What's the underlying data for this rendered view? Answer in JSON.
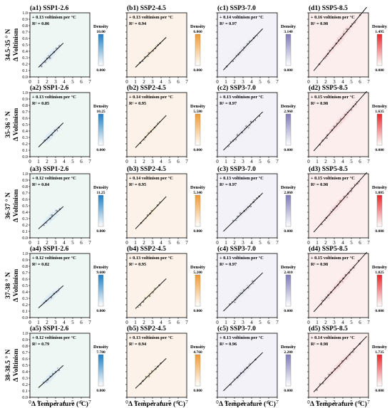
{
  "figure": {
    "xlabel": "Δ Temperature (°C)",
    "ylabel": "Δ Voltinism",
    "x_ticks": [
      "0",
      "1",
      "2",
      "3",
      "4",
      "5",
      "6",
      "7"
    ],
    "y_ticks": [
      "0.0",
      "0.1",
      "0.2",
      "0.3",
      "0.4",
      "0.5",
      "0.6",
      "0.7",
      "0.8",
      "0.9",
      "1.0"
    ],
    "density_label": "Density",
    "density_min": "0.000",
    "row_labels": [
      "34.5-35 ° N",
      "35-36 ° N",
      "36-37 ° N",
      "37-38 ° N",
      "38-38.5 ° N"
    ],
    "scenarios": [
      {
        "name": "SSP1-2.6",
        "bg": "#eef7f3",
        "cmap": "#1f7fc4"
      },
      {
        "name": "SSP2-4.5",
        "bg": "#fdf2e9",
        "cmap": "#f29a2e"
      },
      {
        "name": "SSP3-7.0",
        "bg": "#f3f2f9",
        "cmap": "#7f7cba"
      },
      {
        "name": "SSP5-8.5",
        "bg": "#fdeeee",
        "cmap": "#e8262a"
      }
    ]
  },
  "chart_data": [
    {
      "type": "scatter",
      "panel": "(a1) SSP1-2.6",
      "slope_text": "+ 0.13 voltinism per °C",
      "r2_text": "R² = 0.86",
      "density_max": "10.00",
      "xlim": [
        0,
        7
      ],
      "ylim": [
        0,
        1.0
      ],
      "x_range": [
        1.2,
        3.6
      ],
      "slope": 0.13,
      "intercept": 0.02
    },
    {
      "type": "scatter",
      "panel": "(b1) SSP2-4.5",
      "slope_text": "+ 0.13 voltinism per °C",
      "r2_text": "R² = 0.94",
      "density_max": "6.060",
      "xlim": [
        0,
        7
      ],
      "ylim": [
        0,
        1.0
      ],
      "x_range": [
        1.2,
        4.3
      ],
      "slope": 0.13,
      "intercept": 0.02
    },
    {
      "type": "scatter",
      "panel": "(c1) SSP3-7.0",
      "slope_text": "+ 0.14 voltinism per °C",
      "r2_text": "R² = 0.97",
      "density_max": "3.140",
      "xlim": [
        0,
        7
      ],
      "ylim": [
        0,
        1.0
      ],
      "x_range": [
        0.9,
        5.0
      ],
      "slope": 0.14,
      "intercept": 0.01
    },
    {
      "type": "scatter",
      "panel": "(d1) SSP5-8.5",
      "slope_text": "+ 0.16 voltinism per °C",
      "r2_text": "R² = 0.98",
      "density_max": "1.495",
      "xlim": [
        0,
        7
      ],
      "ylim": [
        0,
        1.0
      ],
      "x_range": [
        0.8,
        6.5
      ],
      "slope": 0.16,
      "intercept": 0.0
    },
    {
      "type": "scatter",
      "panel": "(a2) SSP1-2.6",
      "slope_text": "+ 0.13 voltinism per °C",
      "r2_text": "R² = 0.85",
      "density_max": "10.25",
      "xlim": [
        0,
        7
      ],
      "ylim": [
        0,
        1.0
      ],
      "x_range": [
        1.2,
        3.6
      ],
      "slope": 0.13,
      "intercept": 0.02
    },
    {
      "type": "scatter",
      "panel": "(b2) SSP2-4.5",
      "slope_text": "+ 0.14 voltinism per °C",
      "r2_text": "R² = 0.95",
      "density_max": "5.580",
      "xlim": [
        0,
        7
      ],
      "ylim": [
        0,
        1.0
      ],
      "x_range": [
        1.2,
        4.3
      ],
      "slope": 0.14,
      "intercept": 0.0
    },
    {
      "type": "scatter",
      "panel": "(c2) SSP3-7.0",
      "slope_text": "+ 0.13 voltinism per °C",
      "r2_text": "R² = 0.97",
      "density_max": "2.960",
      "xlim": [
        0,
        7
      ],
      "ylim": [
        0,
        1.0
      ],
      "x_range": [
        0.9,
        5.0
      ],
      "slope": 0.13,
      "intercept": 0.01
    },
    {
      "type": "scatter",
      "panel": "(d2) SSP5-8.5",
      "slope_text": "+ 0.15 voltinism per °C",
      "r2_text": "R² = 0.98",
      "density_max": "1.635",
      "xlim": [
        0,
        7
      ],
      "ylim": [
        0,
        1.0
      ],
      "x_range": [
        0.8,
        6.5
      ],
      "slope": 0.15,
      "intercept": 0.0
    },
    {
      "type": "scatter",
      "panel": "(a3) SSP1-2.6",
      "slope_text": "+ 0.12 voltinism per °C",
      "r2_text": "R² = 0.84",
      "density_max": "11.25",
      "xlim": [
        0,
        7
      ],
      "ylim": [
        0,
        1.0
      ],
      "x_range": [
        1.2,
        3.6
      ],
      "slope": 0.12,
      "intercept": 0.02
    },
    {
      "type": "scatter",
      "panel": "(b3) SSP2-4.5",
      "slope_text": "+ 0.14 voltinism per °C",
      "r2_text": "R² = 0.95",
      "density_max": "5.340",
      "xlim": [
        0,
        7
      ],
      "ylim": [
        0,
        1.0
      ],
      "x_range": [
        1.2,
        4.3
      ],
      "slope": 0.14,
      "intercept": 0.0
    },
    {
      "type": "scatter",
      "panel": "(c3) SSP3-7.0",
      "slope_text": "+ 0.13 voltinism per °C",
      "r2_text": "R² = 0.97",
      "density_max": "2.860",
      "xlim": [
        0,
        7
      ],
      "ylim": [
        0,
        1.0
      ],
      "x_range": [
        0.9,
        5.0
      ],
      "slope": 0.13,
      "intercept": 0.01
    },
    {
      "type": "scatter",
      "panel": "(d3) SSP5-8.5",
      "slope_text": "+ 0.15 voltinism per °C",
      "r2_text": "R² = 0.98",
      "density_max": "1.805",
      "xlim": [
        0,
        7
      ],
      "ylim": [
        0,
        1.0
      ],
      "x_range": [
        0.8,
        6.5
      ],
      "slope": 0.15,
      "intercept": 0.0
    },
    {
      "type": "scatter",
      "panel": "(a4) SSP1-2.6",
      "slope_text": "+ 0.12 voltinism per °C",
      "r2_text": "R² = 0.82",
      "density_max": "9.600",
      "xlim": [
        0,
        7
      ],
      "ylim": [
        0,
        1.0
      ],
      "x_range": [
        1.2,
        3.6
      ],
      "slope": 0.12,
      "intercept": 0.03
    },
    {
      "type": "scatter",
      "panel": "(b4) SSP2-4.5",
      "slope_text": "+ 0.13 voltinism per °C",
      "r2_text": "R² = 0.95",
      "density_max": "5.200",
      "xlim": [
        0,
        7
      ],
      "ylim": [
        0,
        1.0
      ],
      "x_range": [
        1.2,
        4.3
      ],
      "slope": 0.13,
      "intercept": 0.01
    },
    {
      "type": "scatter",
      "panel": "(c4) SSP3-7.0",
      "slope_text": "+ 0.13 voltinism per °C",
      "r2_text": "R² = 0.97",
      "density_max": "2.410",
      "xlim": [
        0,
        7
      ],
      "ylim": [
        0,
        1.0
      ],
      "x_range": [
        0.9,
        5.0
      ],
      "slope": 0.13,
      "intercept": 0.01
    },
    {
      "type": "scatter",
      "panel": "(d4) SSP5-8.5",
      "slope_text": "+ 0.15 voltinism per °C",
      "r2_text": "R² = 0.98",
      "density_max": "1.825",
      "xlim": [
        0,
        7
      ],
      "ylim": [
        0,
        1.0
      ],
      "x_range": [
        0.8,
        6.5
      ],
      "slope": 0.15,
      "intercept": 0.0
    },
    {
      "type": "scatter",
      "panel": "(a5) SSP1-2.6",
      "slope_text": "+ 0.12 voltinism per °C",
      "r2_text": "R² = 0.79",
      "density_max": "7.700",
      "xlim": [
        0,
        7
      ],
      "ylim": [
        0,
        1.0
      ],
      "x_range": [
        1.2,
        3.6
      ],
      "slope": 0.12,
      "intercept": 0.03
    },
    {
      "type": "scatter",
      "panel": "(b5) SSP2-4.5",
      "slope_text": "+ 0.13 voltinism per °C",
      "r2_text": "R² = 0.94",
      "density_max": "4.760",
      "xlim": [
        0,
        7
      ],
      "ylim": [
        0,
        1.0
      ],
      "x_range": [
        1.2,
        4.3
      ],
      "slope": 0.13,
      "intercept": 0.01
    },
    {
      "type": "scatter",
      "panel": "(c5) SSP3-7.0",
      "slope_text": "+ 0.13 voltinism per °C",
      "r2_text": "R² = 0.96",
      "density_max": "2.280",
      "xlim": [
        0,
        7
      ],
      "ylim": [
        0,
        1.0
      ],
      "x_range": [
        0.9,
        5.0
      ],
      "slope": 0.13,
      "intercept": 0.01
    },
    {
      "type": "scatter",
      "panel": "(d5) SSP5-8.5",
      "slope_text": "+ 0.14 voltinism per °C",
      "r2_text": "R² = 0.98",
      "density_max": "1.735",
      "xlim": [
        0,
        7
      ],
      "ylim": [
        0,
        1.0
      ],
      "x_range": [
        0.8,
        6.5
      ],
      "slope": 0.14,
      "intercept": 0.0
    }
  ]
}
